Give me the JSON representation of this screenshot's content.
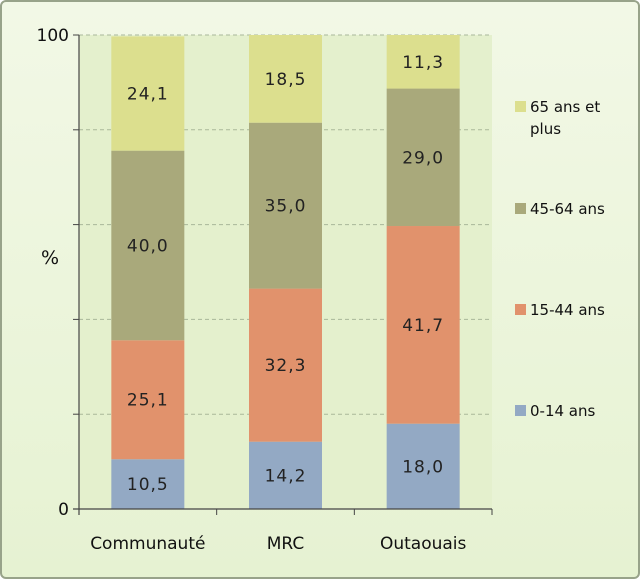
{
  "chart_data": {
    "type": "bar",
    "stacked": true,
    "percent": true,
    "categories": [
      "Communauté",
      "MRC",
      "Outaouais"
    ],
    "series": [
      {
        "name": "0-14 ans",
        "color": "#93a9c4",
        "values": [
          10.5,
          14.2,
          18.0
        ],
        "labels": [
          "10,5",
          "14,2",
          "18,0"
        ]
      },
      {
        "name": "15-44 ans",
        "color": "#e1926c",
        "values": [
          25.1,
          32.3,
          41.7
        ],
        "labels": [
          "25,1",
          "32,3",
          "41,7"
        ]
      },
      {
        "name": "45-64 ans",
        "color": "#a9a97b",
        "values": [
          40.0,
          35.0,
          29.0
        ],
        "labels": [
          "40,0",
          "35,0",
          "29,0"
        ]
      },
      {
        "name": "65 ans et plus",
        "legend_lines": [
          "65 ans et",
          "plus"
        ],
        "color": "#dcdf8e",
        "values": [
          24.1,
          18.5,
          11.3
        ],
        "labels": [
          "24,1",
          "18,5",
          "11,3"
        ]
      }
    ],
    "ylabel": "%",
    "xlabel": "",
    "ylim": [
      0,
      100
    ],
    "yticks": [
      0,
      100
    ],
    "gridlines": [
      20,
      40,
      60,
      80,
      100
    ],
    "grid": true,
    "legend": "right"
  }
}
